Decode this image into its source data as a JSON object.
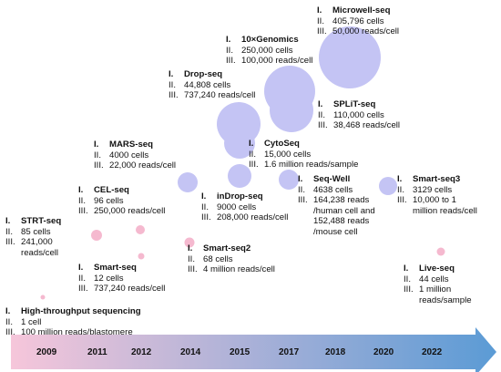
{
  "colors": {
    "droplet": "#c4c4f4",
    "plate": "#f5b9cf",
    "timeline_start": "#f6c6da",
    "timeline_end": "#5b9bd5"
  },
  "years": [
    "2009",
    "2011",
    "2012",
    "2014",
    "2015",
    "2017",
    "2018",
    "2020",
    "2022"
  ],
  "methods": [
    {
      "id": "high-throughput",
      "name": "High-throughput sequencing",
      "lines": [
        "1 cell",
        "100 million reads/blastomere"
      ],
      "type": "plate",
      "value": 1
    },
    {
      "id": "strt-seq",
      "name": "STRT-seq",
      "lines": [
        "85 cells",
        "241,000",
        "reads/cell"
      ],
      "type": "plate",
      "value": 85
    },
    {
      "id": "smart-seq",
      "name": "Smart-seq",
      "lines": [
        "12 cells",
        "737,240 reads/cell"
      ],
      "type": "plate",
      "value": 12
    },
    {
      "id": "cel-seq",
      "name": "CEL-seq",
      "lines": [
        "96 cells",
        "250,000 reads/cell"
      ],
      "type": "plate",
      "value": 96
    },
    {
      "id": "smart-seq2",
      "name": "Smart-seq2",
      "lines": [
        "68 cells",
        "4 million reads/cell"
      ],
      "type": "plate",
      "value": 68
    },
    {
      "id": "mars-seq",
      "name": "MARS-seq",
      "lines": [
        "4000 cells",
        "22,000 reads/cell"
      ],
      "type": "droplet",
      "value": 4000
    },
    {
      "id": "drop-seq",
      "name": "Drop-seq",
      "lines": [
        "44,808 cells",
        "737,240 reads/cell"
      ],
      "type": "droplet",
      "value": 44808
    },
    {
      "id": "indrop-seq",
      "name": "inDrop-seq",
      "lines": [
        "9000 cells",
        "208,000 reads/cell"
      ],
      "type": "droplet",
      "value": 9000
    },
    {
      "id": "cytoseq",
      "name": "CytoSeq",
      "lines": [
        "15,000 cells",
        "1.6 million reads/sample"
      ],
      "type": "droplet",
      "value": 15000
    },
    {
      "id": "10x-genomics",
      "name": "10×Genomics",
      "lines": [
        "250,000 cells",
        "100,000 reads/cell"
      ],
      "type": "droplet",
      "value": 250000
    },
    {
      "id": "split-seq",
      "name": "SPLiT-seq",
      "lines": [
        "110,000 cells",
        "38,468 reads/cell"
      ],
      "type": "droplet",
      "value": 110000
    },
    {
      "id": "seq-well",
      "name": "Seq-Well",
      "lines": [
        "4638 cells",
        "164,238 reads",
        "/human cell and",
        "152,488 reads",
        "/mouse cell"
      ],
      "type": "droplet",
      "value": 4638
    },
    {
      "id": "microwell-seq",
      "name": "Microwell-seq",
      "lines": [
        "405,796 cells",
        "50,000 reads/cell"
      ],
      "type": "droplet",
      "value": 405796
    },
    {
      "id": "smart-seq3",
      "name": "Smart-seq3",
      "lines": [
        "3129 cells",
        "10,000  to 1",
        "million reads/cell"
      ],
      "type": "droplet",
      "value": 3129
    },
    {
      "id": "live-seq",
      "name": "Live-seq",
      "lines": [
        "44 cells",
        "1 million",
        "reads/sample"
      ],
      "type": "plate",
      "value": 44
    }
  ]
}
